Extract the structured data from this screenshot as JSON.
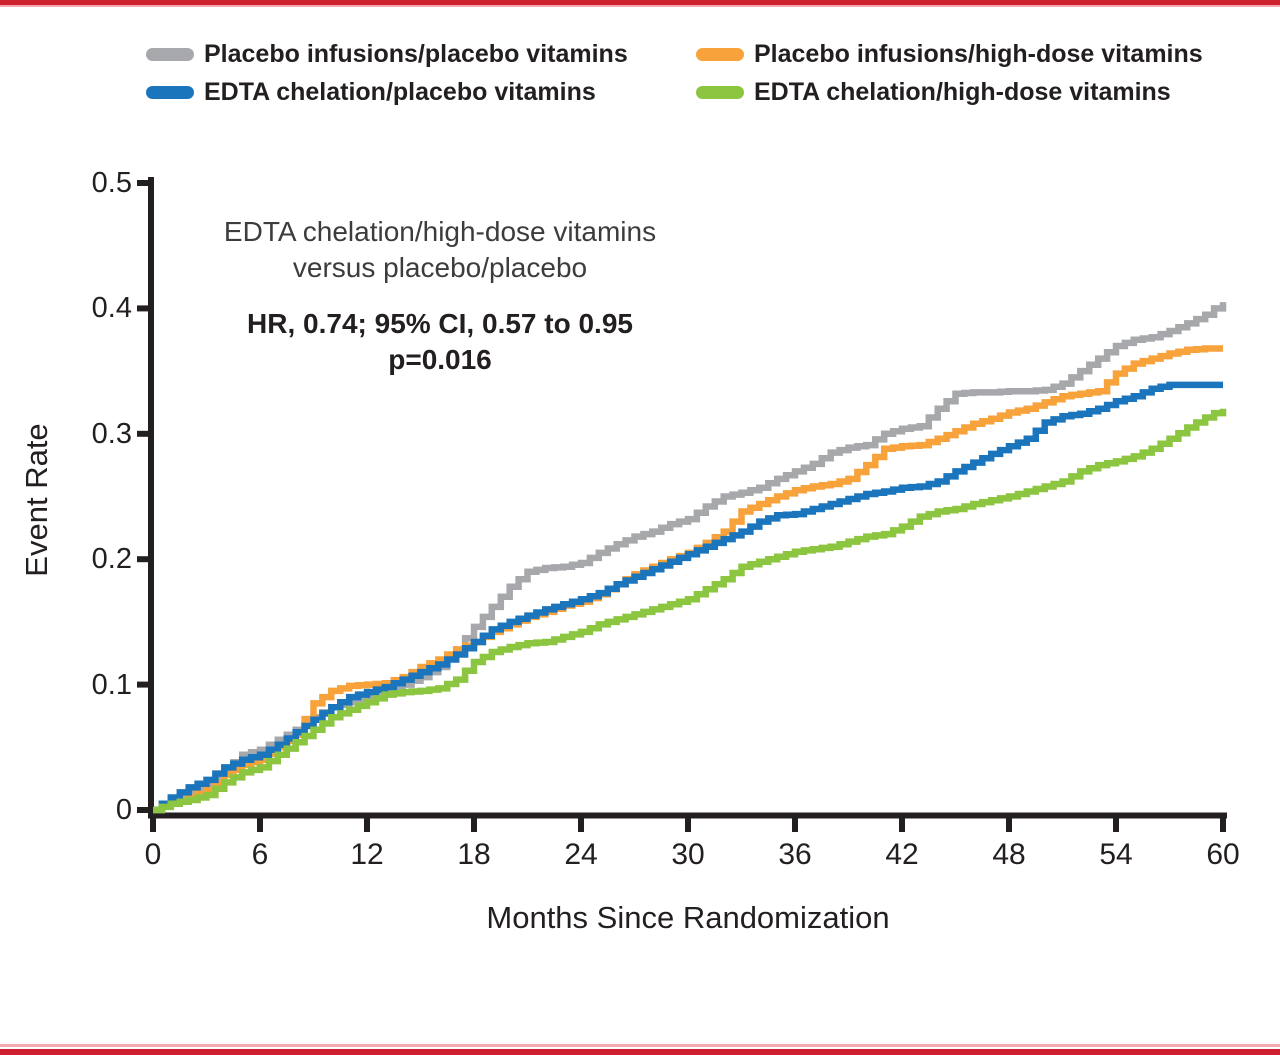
{
  "page": {
    "border_color": "#CE2130",
    "border_light_color": "#F2A9B0",
    "background": "#FFFFFF",
    "text_color": "#231F20"
  },
  "legend": {
    "items": [
      {
        "id": "placebo-placebo",
        "label": "Placebo infusions/placebo vitamins",
        "color": "#A6A8AB"
      },
      {
        "id": "placebo-vitamins",
        "label": "Placebo infusions/high-dose vitamins",
        "color": "#F7A23B"
      },
      {
        "id": "edta-placebo",
        "label": "EDTA chelation/placebo vitamins",
        "color": "#1B75BC"
      },
      {
        "id": "edta-vitamins",
        "label": "EDTA chelation/high-dose vitamins",
        "color": "#8CC540"
      }
    ]
  },
  "annotation": {
    "comparison_line1": "EDTA chelation/high-dose vitamins",
    "comparison_line2": "versus placebo/placebo",
    "stat_line1": "HR, 0.74; 95% CI, 0.57 to 0.95",
    "stat_line2": "p=0.016"
  },
  "chart_data": {
    "type": "line",
    "subtype": "kaplan-meier-step",
    "title": "",
    "xlabel": "Months Since Randomization",
    "ylabel": "Event Rate",
    "xlim": [
      0,
      60
    ],
    "ylim": [
      0,
      0.5
    ],
    "grid": false,
    "legend_position": "top",
    "x_ticks": {
      "values": [
        0,
        6,
        12,
        18,
        24,
        30,
        36,
        42,
        48,
        54,
        60
      ],
      "labels": [
        "0",
        "6",
        "12",
        "18",
        "24",
        "30",
        "36",
        "42",
        "48",
        "54",
        "60"
      ]
    },
    "y_ticks": {
      "values": [
        0,
        0.1,
        0.2,
        0.3,
        0.4,
        0.5
      ],
      "labels": [
        "0",
        "0.1",
        "0.2",
        "0.3",
        "0.4",
        "0.5"
      ]
    },
    "x": [
      0,
      1,
      2,
      3,
      4,
      5,
      6,
      7,
      8,
      9,
      10,
      11,
      12,
      13,
      14,
      15,
      16,
      17,
      18,
      19,
      20,
      21,
      22,
      23,
      24,
      25,
      26,
      27,
      28,
      29,
      30,
      31,
      32,
      33,
      34,
      35,
      36,
      37,
      38,
      39,
      40,
      41,
      42,
      43,
      44,
      45,
      46,
      47,
      48,
      49,
      50,
      51,
      52,
      53,
      54,
      55,
      56,
      57,
      58,
      59,
      60
    ],
    "series": [
      {
        "name": "Placebo infusions/placebo vitamins",
        "color": "#A6A8AB",
        "values": [
          0,
          0.008,
          0.014,
          0.02,
          0.032,
          0.044,
          0.048,
          0.056,
          0.064,
          0.074,
          0.082,
          0.086,
          0.09,
          0.094,
          0.1,
          0.106,
          0.114,
          0.128,
          0.146,
          0.162,
          0.178,
          0.19,
          0.193,
          0.194,
          0.197,
          0.205,
          0.212,
          0.218,
          0.222,
          0.228,
          0.232,
          0.242,
          0.25,
          0.253,
          0.257,
          0.264,
          0.27,
          0.276,
          0.285,
          0.289,
          0.291,
          0.3,
          0.304,
          0.306,
          0.32,
          0.332,
          0.333,
          0.333,
          0.334,
          0.334,
          0.335,
          0.34,
          0.35,
          0.36,
          0.37,
          0.375,
          0.377,
          0.382,
          0.388,
          0.395,
          0.405
        ]
      },
      {
        "name": "Placebo infusions/high-dose vitamins",
        "color": "#F7A23B",
        "values": [
          0,
          0.006,
          0.01,
          0.016,
          0.028,
          0.036,
          0.04,
          0.05,
          0.06,
          0.085,
          0.095,
          0.099,
          0.1,
          0.101,
          0.106,
          0.114,
          0.12,
          0.128,
          0.134,
          0.142,
          0.148,
          0.154,
          0.158,
          0.163,
          0.166,
          0.172,
          0.18,
          0.188,
          0.194,
          0.2,
          0.205,
          0.213,
          0.222,
          0.238,
          0.244,
          0.25,
          0.255,
          0.258,
          0.26,
          0.264,
          0.275,
          0.288,
          0.29,
          0.291,
          0.296,
          0.302,
          0.308,
          0.312,
          0.317,
          0.32,
          0.325,
          0.33,
          0.332,
          0.334,
          0.348,
          0.356,
          0.36,
          0.364,
          0.367,
          0.368,
          0.368
        ]
      },
      {
        "name": "EDTA chelation/placebo vitamins",
        "color": "#1B75BC",
        "values": [
          0,
          0.01,
          0.018,
          0.024,
          0.034,
          0.04,
          0.044,
          0.052,
          0.062,
          0.072,
          0.082,
          0.09,
          0.094,
          0.098,
          0.104,
          0.11,
          0.116,
          0.124,
          0.134,
          0.144,
          0.15,
          0.155,
          0.16,
          0.164,
          0.168,
          0.173,
          0.18,
          0.186,
          0.192,
          0.198,
          0.204,
          0.21,
          0.216,
          0.222,
          0.23,
          0.235,
          0.236,
          0.24,
          0.244,
          0.248,
          0.252,
          0.254,
          0.257,
          0.258,
          0.262,
          0.27,
          0.277,
          0.284,
          0.29,
          0.296,
          0.309,
          0.314,
          0.316,
          0.32,
          0.326,
          0.33,
          0.336,
          0.339,
          0.339,
          0.339,
          0.339
        ]
      },
      {
        "name": "EDTA chelation/high-dose vitamins",
        "color": "#8CC540",
        "values": [
          0,
          0.005,
          0.008,
          0.012,
          0.022,
          0.03,
          0.034,
          0.044,
          0.054,
          0.064,
          0.074,
          0.08,
          0.086,
          0.092,
          0.094,
          0.095,
          0.097,
          0.104,
          0.118,
          0.126,
          0.13,
          0.133,
          0.134,
          0.138,
          0.142,
          0.148,
          0.152,
          0.156,
          0.16,
          0.164,
          0.168,
          0.176,
          0.184,
          0.194,
          0.198,
          0.202,
          0.206,
          0.208,
          0.21,
          0.214,
          0.218,
          0.22,
          0.226,
          0.234,
          0.238,
          0.24,
          0.244,
          0.247,
          0.25,
          0.254,
          0.258,
          0.262,
          0.27,
          0.275,
          0.278,
          0.282,
          0.288,
          0.296,
          0.305,
          0.313,
          0.32
        ]
      }
    ]
  }
}
